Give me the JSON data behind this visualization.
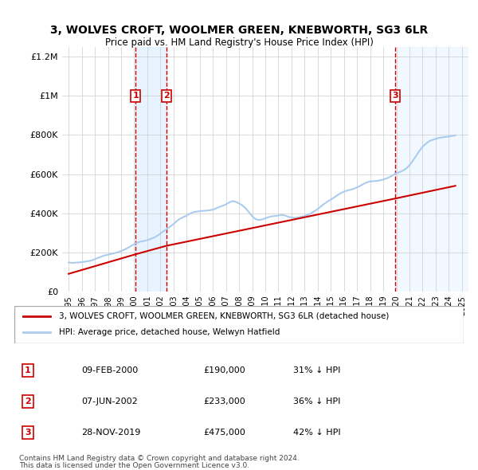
{
  "title": "3, WOLVES CROFT, WOOLMER GREEN, KNEBWORTH, SG3 6LR",
  "subtitle": "Price paid vs. HM Land Registry's House Price Index (HPI)",
  "transactions": [
    {
      "num": 1,
      "date_label": "09-FEB-2000",
      "date_x": 2000.11,
      "price": 190000,
      "hpi_diff": "31% ↓ HPI"
    },
    {
      "num": 2,
      "date_label": "07-JUN-2002",
      "date_x": 2002.44,
      "price": 233000,
      "hpi_diff": "36% ↓ HPI"
    },
    {
      "num": 3,
      "date_label": "28-NOV-2019",
      "date_x": 2019.91,
      "price": 475000,
      "hpi_diff": "42% ↓ HPI"
    }
  ],
  "legend_label_red": "3, WOLVES CROFT, WOOLMER GREEN, KNEBWORTH, SG3 6LR (detached house)",
  "legend_label_blue": "HPI: Average price, detached house, Welwyn Hatfield",
  "footnote1": "Contains HM Land Registry data © Crown copyright and database right 2024.",
  "footnote2": "This data is licensed under the Open Government Licence v3.0.",
  "ylim": [
    0,
    1250000
  ],
  "xlim": [
    1994.5,
    2025.5
  ],
  "yticks": [
    0,
    200000,
    400000,
    600000,
    800000,
    1000000,
    1200000
  ],
  "ytick_labels": [
    "£0",
    "£200K",
    "£400K",
    "£600K",
    "£800K",
    "£1M",
    "£1.2M"
  ],
  "background_color": "#ffffff",
  "plot_bg_color": "#ffffff",
  "grid_color": "#cccccc",
  "red_line_color": "#cc0000",
  "blue_line_color": "#aaccee",
  "shade_color": "#ddeeff",
  "marker_box_color": "#cc0000",
  "hpi_data_x": [
    1995.0,
    1995.25,
    1995.5,
    1995.75,
    1996.0,
    1996.25,
    1996.5,
    1996.75,
    1997.0,
    1997.25,
    1997.5,
    1997.75,
    1998.0,
    1998.25,
    1998.5,
    1998.75,
    1999.0,
    1999.25,
    1999.5,
    1999.75,
    2000.0,
    2000.25,
    2000.5,
    2000.75,
    2001.0,
    2001.25,
    2001.5,
    2001.75,
    2002.0,
    2002.25,
    2002.5,
    2002.75,
    2003.0,
    2003.25,
    2003.5,
    2003.75,
    2004.0,
    2004.25,
    2004.5,
    2004.75,
    2005.0,
    2005.25,
    2005.5,
    2005.75,
    2006.0,
    2006.25,
    2006.5,
    2006.75,
    2007.0,
    2007.25,
    2007.5,
    2007.75,
    2008.0,
    2008.25,
    2008.5,
    2008.75,
    2009.0,
    2009.25,
    2009.5,
    2009.75,
    2010.0,
    2010.25,
    2010.5,
    2010.75,
    2011.0,
    2011.25,
    2011.5,
    2011.75,
    2012.0,
    2012.25,
    2012.5,
    2012.75,
    2013.0,
    2013.25,
    2013.5,
    2013.75,
    2014.0,
    2014.25,
    2014.5,
    2014.75,
    2015.0,
    2015.25,
    2015.5,
    2015.75,
    2016.0,
    2016.25,
    2016.5,
    2016.75,
    2017.0,
    2017.25,
    2017.5,
    2017.75,
    2018.0,
    2018.25,
    2018.5,
    2018.75,
    2019.0,
    2019.25,
    2019.5,
    2019.75,
    2020.0,
    2020.25,
    2020.5,
    2020.75,
    2021.0,
    2021.25,
    2021.5,
    2021.75,
    2022.0,
    2022.25,
    2022.5,
    2022.75,
    2023.0,
    2023.25,
    2023.5,
    2023.75,
    2024.0,
    2024.25,
    2024.5
  ],
  "hpi_data_y": [
    148000,
    146000,
    147000,
    148000,
    150000,
    152000,
    155000,
    158000,
    165000,
    172000,
    178000,
    184000,
    188000,
    192000,
    196000,
    200000,
    206000,
    214000,
    222000,
    232000,
    242000,
    250000,
    255000,
    258000,
    262000,
    268000,
    275000,
    284000,
    296000,
    308000,
    320000,
    332000,
    345000,
    360000,
    372000,
    380000,
    388000,
    398000,
    405000,
    408000,
    410000,
    412000,
    413000,
    415000,
    418000,
    425000,
    432000,
    438000,
    445000,
    455000,
    462000,
    458000,
    450000,
    440000,
    425000,
    405000,
    385000,
    370000,
    365000,
    368000,
    374000,
    380000,
    384000,
    386000,
    388000,
    392000,
    388000,
    382000,
    378000,
    376000,
    378000,
    382000,
    386000,
    392000,
    400000,
    410000,
    422000,
    435000,
    448000,
    460000,
    470000,
    480000,
    492000,
    502000,
    510000,
    516000,
    520000,
    525000,
    532000,
    540000,
    550000,
    558000,
    562000,
    564000,
    565000,
    568000,
    572000,
    578000,
    585000,
    595000,
    605000,
    610000,
    618000,
    628000,
    645000,
    668000,
    692000,
    718000,
    740000,
    755000,
    768000,
    775000,
    780000,
    785000,
    788000,
    790000,
    792000,
    795000,
    798000
  ],
  "price_paid_x": [
    1995.0,
    2000.11,
    2002.44,
    2019.91,
    2024.5
  ],
  "price_paid_y": [
    90000,
    190000,
    233000,
    475000,
    540000
  ]
}
